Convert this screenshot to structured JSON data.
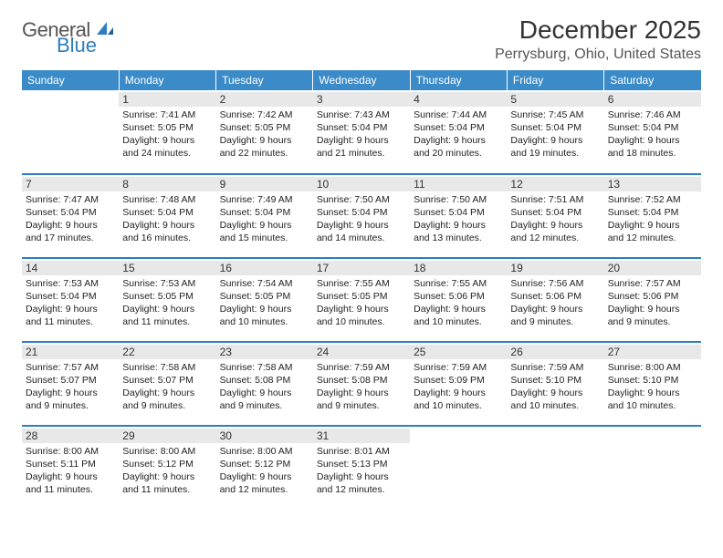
{
  "logo": {
    "word1": "General",
    "word2": "Blue"
  },
  "title": "December 2025",
  "location": "Perrysburg, Ohio, United States",
  "header_bg": "#3b8bc8",
  "rule_color": "#2d7dc0",
  "daynum_bg": "#e8e8e8",
  "day_headers": [
    "Sunday",
    "Monday",
    "Tuesday",
    "Wednesday",
    "Thursday",
    "Friday",
    "Saturday"
  ],
  "weeks": [
    [
      null,
      {
        "n": "1",
        "sr": "7:41 AM",
        "ss": "5:05 PM",
        "dl": "9 hours and 24 minutes."
      },
      {
        "n": "2",
        "sr": "7:42 AM",
        "ss": "5:05 PM",
        "dl": "9 hours and 22 minutes."
      },
      {
        "n": "3",
        "sr": "7:43 AM",
        "ss": "5:04 PM",
        "dl": "9 hours and 21 minutes."
      },
      {
        "n": "4",
        "sr": "7:44 AM",
        "ss": "5:04 PM",
        "dl": "9 hours and 20 minutes."
      },
      {
        "n": "5",
        "sr": "7:45 AM",
        "ss": "5:04 PM",
        "dl": "9 hours and 19 minutes."
      },
      {
        "n": "6",
        "sr": "7:46 AM",
        "ss": "5:04 PM",
        "dl": "9 hours and 18 minutes."
      }
    ],
    [
      {
        "n": "7",
        "sr": "7:47 AM",
        "ss": "5:04 PM",
        "dl": "9 hours and 17 minutes."
      },
      {
        "n": "8",
        "sr": "7:48 AM",
        "ss": "5:04 PM",
        "dl": "9 hours and 16 minutes."
      },
      {
        "n": "9",
        "sr": "7:49 AM",
        "ss": "5:04 PM",
        "dl": "9 hours and 15 minutes."
      },
      {
        "n": "10",
        "sr": "7:50 AM",
        "ss": "5:04 PM",
        "dl": "9 hours and 14 minutes."
      },
      {
        "n": "11",
        "sr": "7:50 AM",
        "ss": "5:04 PM",
        "dl": "9 hours and 13 minutes."
      },
      {
        "n": "12",
        "sr": "7:51 AM",
        "ss": "5:04 PM",
        "dl": "9 hours and 12 minutes."
      },
      {
        "n": "13",
        "sr": "7:52 AM",
        "ss": "5:04 PM",
        "dl": "9 hours and 12 minutes."
      }
    ],
    [
      {
        "n": "14",
        "sr": "7:53 AM",
        "ss": "5:04 PM",
        "dl": "9 hours and 11 minutes."
      },
      {
        "n": "15",
        "sr": "7:53 AM",
        "ss": "5:05 PM",
        "dl": "9 hours and 11 minutes."
      },
      {
        "n": "16",
        "sr": "7:54 AM",
        "ss": "5:05 PM",
        "dl": "9 hours and 10 minutes."
      },
      {
        "n": "17",
        "sr": "7:55 AM",
        "ss": "5:05 PM",
        "dl": "9 hours and 10 minutes."
      },
      {
        "n": "18",
        "sr": "7:55 AM",
        "ss": "5:06 PM",
        "dl": "9 hours and 10 minutes."
      },
      {
        "n": "19",
        "sr": "7:56 AM",
        "ss": "5:06 PM",
        "dl": "9 hours and 9 minutes."
      },
      {
        "n": "20",
        "sr": "7:57 AM",
        "ss": "5:06 PM",
        "dl": "9 hours and 9 minutes."
      }
    ],
    [
      {
        "n": "21",
        "sr": "7:57 AM",
        "ss": "5:07 PM",
        "dl": "9 hours and 9 minutes."
      },
      {
        "n": "22",
        "sr": "7:58 AM",
        "ss": "5:07 PM",
        "dl": "9 hours and 9 minutes."
      },
      {
        "n": "23",
        "sr": "7:58 AM",
        "ss": "5:08 PM",
        "dl": "9 hours and 9 minutes."
      },
      {
        "n": "24",
        "sr": "7:59 AM",
        "ss": "5:08 PM",
        "dl": "9 hours and 9 minutes."
      },
      {
        "n": "25",
        "sr": "7:59 AM",
        "ss": "5:09 PM",
        "dl": "9 hours and 10 minutes."
      },
      {
        "n": "26",
        "sr": "7:59 AM",
        "ss": "5:10 PM",
        "dl": "9 hours and 10 minutes."
      },
      {
        "n": "27",
        "sr": "8:00 AM",
        "ss": "5:10 PM",
        "dl": "9 hours and 10 minutes."
      }
    ],
    [
      {
        "n": "28",
        "sr": "8:00 AM",
        "ss": "5:11 PM",
        "dl": "9 hours and 11 minutes."
      },
      {
        "n": "29",
        "sr": "8:00 AM",
        "ss": "5:12 PM",
        "dl": "9 hours and 11 minutes."
      },
      {
        "n": "30",
        "sr": "8:00 AM",
        "ss": "5:12 PM",
        "dl": "9 hours and 12 minutes."
      },
      {
        "n": "31",
        "sr": "8:01 AM",
        "ss": "5:13 PM",
        "dl": "9 hours and 12 minutes."
      },
      null,
      null,
      null
    ]
  ],
  "labels": {
    "sunrise": "Sunrise:",
    "sunset": "Sunset:",
    "daylight": "Daylight:"
  }
}
